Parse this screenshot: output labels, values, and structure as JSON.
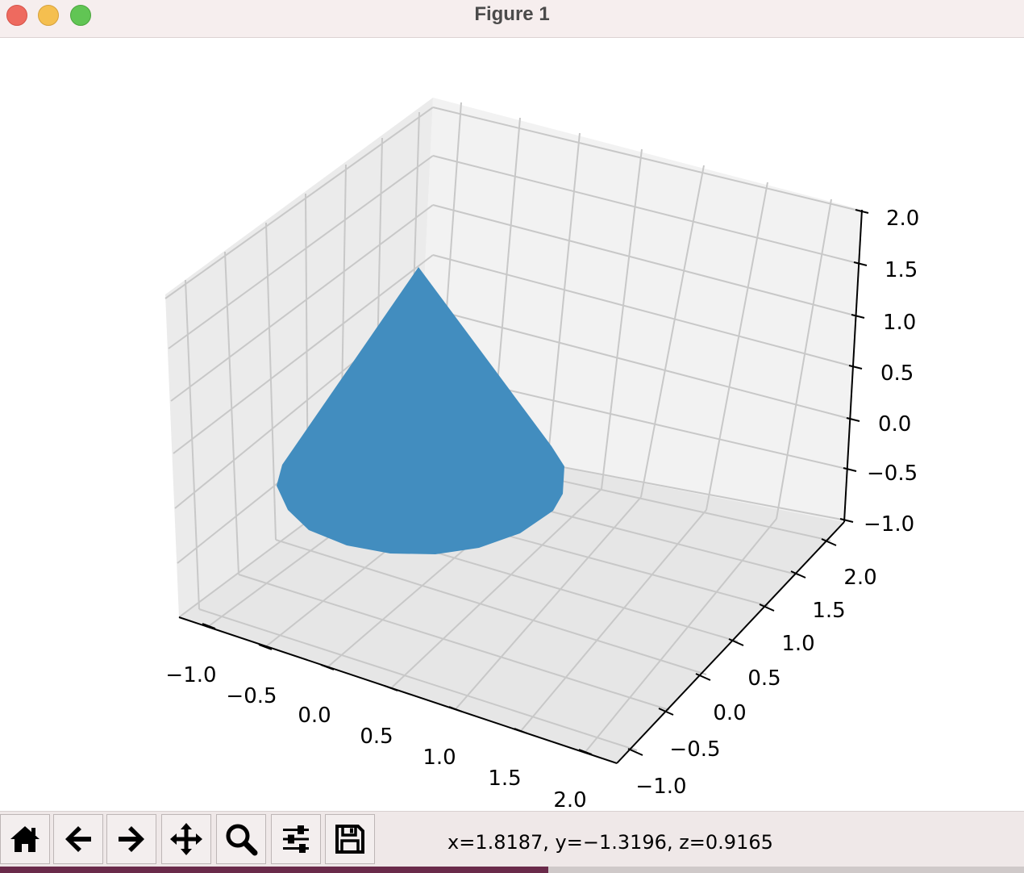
{
  "window": {
    "title": "Figure 1"
  },
  "chart_data": {
    "type": "surface-3d",
    "shape": "cone",
    "apex": [
      0,
      0,
      1.5
    ],
    "base_center": [
      0,
      0,
      0
    ],
    "base_radius": 1,
    "color": "#1f77b4",
    "xlim": [
      -1.0,
      2.0
    ],
    "ylim": [
      -1.0,
      2.0
    ],
    "zlim": [
      -1.0,
      2.0
    ],
    "x_ticks": [
      "−1.0",
      "−0.5",
      "0.0",
      "0.5",
      "1.0",
      "1.5",
      "2.0"
    ],
    "y_ticks": [
      "−1.0",
      "−0.5",
      "0.0",
      "0.5",
      "1.0",
      "1.5",
      "2.0"
    ],
    "z_ticks": [
      "−1.0",
      "−0.5",
      "0.0",
      "0.5",
      "1.0",
      "1.5",
      "2.0"
    ],
    "grid": true
  },
  "toolbar": {
    "buttons": [
      {
        "name": "home",
        "icon": "home-icon"
      },
      {
        "name": "back",
        "icon": "arrow-left-icon"
      },
      {
        "name": "forward",
        "icon": "arrow-right-icon"
      },
      {
        "name": "pan",
        "icon": "move-icon"
      },
      {
        "name": "zoom",
        "icon": "magnifier-icon"
      },
      {
        "name": "configure",
        "icon": "sliders-icon"
      },
      {
        "name": "save",
        "icon": "floppy-icon"
      }
    ],
    "coordinates": "x=1.8187, y=−1.3196, z=0.9165"
  }
}
